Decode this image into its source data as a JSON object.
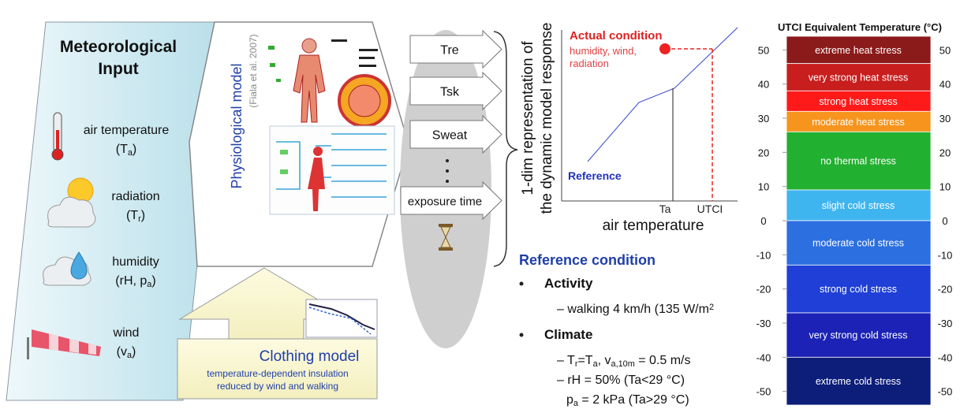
{
  "meteo": {
    "title": [
      "Meteorological",
      "Input"
    ],
    "items": [
      {
        "label": "air temperature",
        "symbol": [
          {
            "text": "(T"
          },
          {
            "sub": "a"
          },
          {
            "text": ")"
          }
        ]
      },
      {
        "label": "radiation",
        "symbol": [
          {
            "text": "(T"
          },
          {
            "sub": "r"
          },
          {
            "text": ")"
          }
        ]
      },
      {
        "label": "humidity",
        "symbol": [
          {
            "text": "(rH, p"
          },
          {
            "sub": "a"
          },
          {
            "text": ")"
          }
        ]
      },
      {
        "label": "wind",
        "symbol": [
          {
            "text": "(v"
          },
          {
            "sub": "a"
          },
          {
            "text": ")"
          }
        ]
      }
    ]
  },
  "physiological_model": {
    "title": "Physiological model",
    "reference": "(Fiala et al. 2007)"
  },
  "clothing_model": {
    "title": "Clothing model",
    "description": [
      "temperature-dependent insulation",
      "reduced by wind and walking"
    ]
  },
  "outputs": [
    "Tre",
    "Tsk",
    "Sweat",
    "exposure time"
  ],
  "representation": [
    "1-dim representation of",
    "the dynamic model response"
  ],
  "response_chart": {
    "annotation": "Actual condition",
    "annotation_detail": [
      "humidity, wind,",
      "radiation"
    ],
    "reference_label": "Reference",
    "x_ticks": [
      "Ta",
      "UTCI"
    ],
    "x_label": "air temperature"
  },
  "reference_condition": {
    "title": "Reference condition",
    "groups": [
      {
        "name": "Activity",
        "lines": [
          [
            {
              "text": "– walking 4 km/h (135 W/m"
            },
            {
              "sup": "2"
            }
          ]
        ]
      },
      {
        "name": "Climate",
        "lines": [
          [
            {
              "text": "– T"
            },
            {
              "sub": "r"
            },
            {
              "text": "=T"
            },
            {
              "sub": "a"
            },
            {
              "text": ", v"
            },
            {
              "sub": "a,10m"
            },
            {
              "text": " = 0.5 m/s"
            }
          ],
          [
            {
              "text": "– rH = 50%  (Ta<29 °C)"
            }
          ],
          [
            {
              "text": "p"
            },
            {
              "sub": "a"
            },
            {
              "text": " = 2 kPa (Ta>29 °C)"
            }
          ]
        ]
      }
    ]
  },
  "utci_scale": {
    "title": "UTCI Equivalent Temperature (°C)",
    "ylim": [
      -54,
      54
    ],
    "ticks": [
      50,
      40,
      30,
      20,
      10,
      0,
      -10,
      -20,
      -30,
      -40,
      -50
    ],
    "bands": [
      {
        "label": "extreme heat stress",
        "max": 54,
        "min": 46,
        "color": "#8b1a1a"
      },
      {
        "label": "very strong heat stress",
        "max": 46,
        "min": 38,
        "color": "#c81e1e"
      },
      {
        "label": "strong heat stress",
        "max": 38,
        "min": 32,
        "color": "#ff1a1a"
      },
      {
        "label": "moderate heat stress",
        "max": 32,
        "min": 26,
        "color": "#f7941d"
      },
      {
        "label": "no thermal stress",
        "max": 26,
        "min": 9,
        "color": "#22b030"
      },
      {
        "label": "slight cold stress",
        "max": 9,
        "min": 0,
        "color": "#3fb5f0"
      },
      {
        "label": "moderate cold stress",
        "max": 0,
        "min": -13,
        "color": "#2b6fe0"
      },
      {
        "label": "strong cold stress",
        "max": -13,
        "min": -27,
        "color": "#1f3fd6"
      },
      {
        "label": "very strong cold stress",
        "max": -27,
        "min": -40,
        "color": "#1b22b5"
      },
      {
        "label": "extreme cold stress",
        "max": -40,
        "min": -54,
        "color": "#0c1d7a"
      }
    ]
  }
}
